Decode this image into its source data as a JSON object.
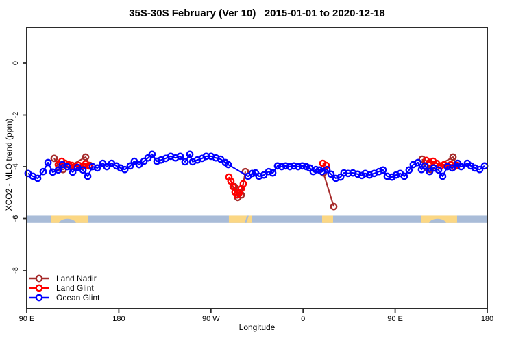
{
  "figure": {
    "title": "35S-30S February (Ver 10)   2015-01-01 to 2020-12-18",
    "xlabel": "Longitude",
    "ylabel": "XCO2 - MLO trend (ppm)"
  },
  "legend": {
    "items": [
      {
        "label": "Land Nadir",
        "color": "#A52A2A"
      },
      {
        "label": "Land Glint",
        "color": "#FF0000"
      },
      {
        "label": "Ocean Glint",
        "color": "#0000FF"
      }
    ]
  },
  "chart_data": {
    "type": "line",
    "title": "35S-30S February (Ver 10)   2015-01-01 to 2020-12-18",
    "xlabel": "Longitude",
    "ylabel": "XCO2 - MLO trend (ppm)",
    "x_axis": {
      "note": "degrees eastward along axis starting at 90E, wrapping through 180, 90W, 0, 90E to 180",
      "min": 0,
      "max": 450,
      "ticks": [
        {
          "pos": 0,
          "label": "90 E"
        },
        {
          "pos": 90,
          "label": "180"
        },
        {
          "pos": 180,
          "label": "90 W"
        },
        {
          "pos": 270,
          "label": "0"
        },
        {
          "pos": 360,
          "label": "90 E"
        },
        {
          "pos": 450,
          "label": "180"
        }
      ]
    },
    "y_axis": {
      "min": -9.6,
      "max": 1.4,
      "ticks": [
        {
          "v": 0,
          "label": "0"
        },
        {
          "v": -2,
          "label": "-2"
        },
        {
          "v": -4,
          "label": "-4"
        },
        {
          "v": -6,
          "label": "-6"
        },
        {
          "v": -8,
          "label": "-8"
        }
      ]
    },
    "series": [
      {
        "name": "Land Nadir",
        "color": "#A52A2A",
        "segments": [
          [
            [
              26.8,
              -3.68
            ],
            [
              31.5,
              -4.03
            ],
            [
              35.5,
              -4.11
            ],
            [
              57.6,
              -3.63
            ],
            [
              61.6,
              -3.95
            ]
          ],
          [
            [
              202.9,
              -4.77
            ],
            [
              206.2,
              -5.19
            ],
            [
              209.6,
              -5.09
            ],
            [
              213.6,
              -4.19
            ]
          ],
          [
            [
              289.9,
              -4.24
            ],
            [
              300.0,
              -5.54
            ]
          ],
          [
            [
              386.4,
              -3.71
            ],
            [
              390.4,
              -4.03
            ],
            [
              394.4,
              -4.11
            ],
            [
              416.5,
              -3.63
            ],
            [
              420.5,
              -3.95
            ]
          ]
        ]
      },
      {
        "name": "Land Glint",
        "color": "#FF0000",
        "segments": [
          [
            [
              30.8,
              -3.92
            ],
            [
              34.2,
              -3.79
            ],
            [
              37.5,
              -3.87
            ],
            [
              40.8,
              -3.92
            ],
            [
              44.2,
              -3.95
            ],
            [
              47.5,
              -4.0
            ],
            [
              50.9,
              -3.95
            ],
            [
              54.9,
              -3.97
            ],
            [
              57.6,
              -3.89
            ],
            [
              60.9,
              -3.97
            ]
          ],
          [
            [
              197.5,
              -4.4
            ],
            [
              199.5,
              -4.56
            ],
            [
              201.6,
              -4.77
            ],
            [
              203.6,
              -4.98
            ],
            [
              205.6,
              -5.09
            ],
            [
              207.6,
              -5.01
            ],
            [
              209.6,
              -4.85
            ],
            [
              211.6,
              -4.66
            ]
          ],
          [
            [
              289.3,
              -3.87
            ],
            [
              292.6,
              -3.95
            ]
          ],
          [
            [
              390.4,
              -3.76
            ],
            [
              393.7,
              -3.84
            ],
            [
              397.1,
              -3.79
            ],
            [
              400.4,
              -3.87
            ],
            [
              404.4,
              -3.97
            ],
            [
              407.8,
              -3.92
            ],
            [
              411.1,
              -3.97
            ],
            [
              414.4,
              -3.92
            ],
            [
              417.8,
              -4.0
            ],
            [
              420.5,
              -3.95
            ]
          ]
        ]
      },
      {
        "name": "Ocean Glint",
        "color": "#0000FF",
        "segments": [
          [
            [
              1.3,
              -4.26
            ],
            [
              6.0,
              -4.37
            ],
            [
              10.7,
              -4.45
            ],
            [
              16.1,
              -4.19
            ],
            [
              20.8,
              -3.84
            ],
            [
              25.4,
              -4.21
            ],
            [
              30.8,
              -4.13
            ],
            [
              34.8,
              -3.92
            ],
            [
              39.5,
              -4.0
            ],
            [
              44.9,
              -4.21
            ],
            [
              49.6,
              -4.03
            ],
            [
              54.9,
              -4.13
            ],
            [
              59.6,
              -4.37
            ],
            [
              64.3,
              -4.0
            ],
            [
              69.0,
              -4.05
            ],
            [
              74.3,
              -3.87
            ],
            [
              78.3,
              -4.0
            ],
            [
              83.0,
              -3.87
            ],
            [
              87.7,
              -3.97
            ],
            [
              91.7,
              -4.05
            ],
            [
              95.8,
              -4.11
            ],
            [
              101.1,
              -3.97
            ],
            [
              105.1,
              -3.79
            ],
            [
              109.8,
              -3.92
            ],
            [
              114.5,
              -3.79
            ],
            [
              118.5,
              -3.66
            ],
            [
              122.5,
              -3.52
            ],
            [
              127.2,
              -3.79
            ],
            [
              131.2,
              -3.74
            ],
            [
              135.9,
              -3.68
            ],
            [
              140.6,
              -3.6
            ],
            [
              145.3,
              -3.66
            ],
            [
              150.0,
              -3.6
            ],
            [
              154.7,
              -3.81
            ],
            [
              159.4,
              -3.52
            ],
            [
              162.1,
              -3.81
            ],
            [
              166.7,
              -3.74
            ],
            [
              171.4,
              -3.68
            ],
            [
              175.4,
              -3.6
            ],
            [
              180.1,
              -3.6
            ],
            [
              184.8,
              -3.66
            ],
            [
              189.5,
              -3.71
            ],
            [
              194.2,
              -3.84
            ],
            [
              196.9,
              -3.92
            ],
            [
              216.3,
              -4.37
            ],
            [
              220.3,
              -4.26
            ],
            [
              223.6,
              -4.24
            ],
            [
              227.0,
              -4.37
            ],
            [
              231.7,
              -4.32
            ],
            [
              236.4,
              -4.19
            ],
            [
              240.4,
              -4.24
            ],
            [
              245.1,
              -3.97
            ],
            [
              249.1,
              -4.0
            ],
            [
              253.1,
              -3.97
            ],
            [
              257.1,
              -4.0
            ],
            [
              261.1,
              -3.97
            ],
            [
              265.2,
              -4.0
            ],
            [
              269.2,
              -3.97
            ],
            [
              273.2,
              -4.0
            ],
            [
              276.5,
              -4.05
            ],
            [
              279.9,
              -4.19
            ],
            [
              282.6,
              -4.11
            ],
            [
              285.9,
              -4.13
            ],
            [
              288.6,
              -4.19
            ],
            [
              293.3,
              -4.11
            ],
            [
              297.3,
              -4.29
            ],
            [
              302.0,
              -4.45
            ],
            [
              306.7,
              -4.4
            ],
            [
              310.0,
              -4.24
            ],
            [
              314.0,
              -4.26
            ],
            [
              318.7,
              -4.24
            ],
            [
              323.4,
              -4.29
            ],
            [
              327.4,
              -4.34
            ],
            [
              330.8,
              -4.26
            ],
            [
              334.8,
              -4.32
            ],
            [
              339.5,
              -4.26
            ],
            [
              344.2,
              -4.19
            ],
            [
              348.2,
              -4.13
            ],
            [
              352.2,
              -4.37
            ],
            [
              356.9,
              -4.4
            ],
            [
              360.9,
              -4.32
            ],
            [
              364.9,
              -4.26
            ],
            [
              368.9,
              -4.37
            ],
            [
              373.6,
              -4.13
            ],
            [
              377.6,
              -3.92
            ],
            [
              382.3,
              -3.84
            ],
            [
              385.7,
              -4.11
            ],
            [
              389.0,
              -3.97
            ],
            [
              393.7,
              -4.19
            ],
            [
              397.7,
              -4.05
            ],
            [
              402.4,
              -4.13
            ],
            [
              406.4,
              -4.37
            ],
            [
              411.1,
              -4.0
            ],
            [
              415.8,
              -4.05
            ],
            [
              421.2,
              -3.87
            ],
            [
              424.5,
              -4.0
            ],
            [
              430.5,
              -3.87
            ],
            [
              433.9,
              -3.97
            ],
            [
              437.9,
              -4.05
            ],
            [
              442.6,
              -4.11
            ],
            [
              447.3,
              -3.97
            ]
          ]
        ]
      }
    ],
    "map_band": {
      "description": "land/ocean strip for latitude band 35S-30S",
      "top_ppm": -5.89,
      "bottom_ppm": -6.17,
      "ocean_color": "#A9BCD8",
      "land_color": "#FBD784",
      "land_segments": [
        {
          "from": 24.1,
          "to": 59.6,
          "name": "Australia"
        },
        {
          "from": 197.5,
          "to": 220.3,
          "name": "South America"
        },
        {
          "from": 288.6,
          "to": 299.3,
          "name": "Southern Africa"
        },
        {
          "from": 385.7,
          "to": 420.5,
          "name": "Australia"
        }
      ],
      "ocean_notches": [
        {
          "center": 39.8,
          "rx_deg": 8.5,
          "name": "Great Australian Bight"
        },
        {
          "center": 401.4,
          "rx_deg": 8.5,
          "name": "Great Australian Bight"
        }
      ],
      "ocean_slants": [
        {
          "at": 214.6
        }
      ]
    }
  }
}
